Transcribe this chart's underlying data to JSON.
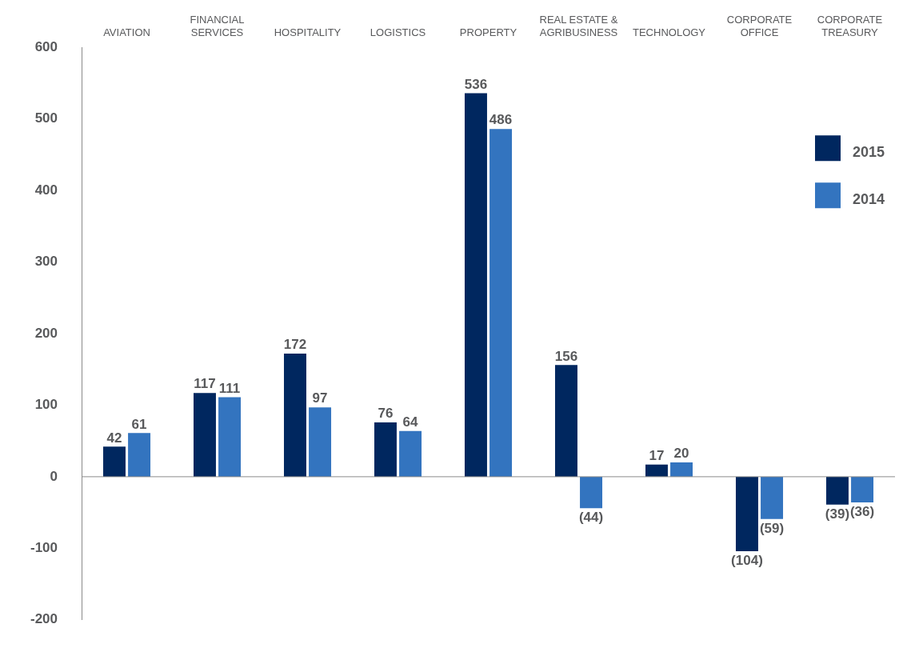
{
  "chart_data": {
    "type": "bar",
    "categories": [
      "AVIATION",
      "FINANCIAL SERVICES",
      "HOSPITALITY",
      "LOGISTICS",
      "PROPERTY",
      "REAL ESTATE & AGRIBUSINESS",
      "TECHNOLOGY",
      "CORPORATE OFFICE",
      "CORPORATE TREASURY"
    ],
    "series": [
      {
        "name": "2015",
        "color": "#00275f",
        "values": [
          42,
          117,
          172,
          76,
          536,
          156,
          17,
          -104,
          -39
        ],
        "value_labels": [
          "42",
          "117",
          "172",
          "76",
          "536",
          "156",
          "17",
          "(104)",
          "(39)"
        ]
      },
      {
        "name": "2014",
        "color": "#3374bf",
        "values": [
          61,
          111,
          97,
          64,
          486,
          -44,
          20,
          -59,
          -36
        ],
        "value_labels": [
          "61",
          "111",
          "97",
          "64",
          "486",
          "(44)",
          "20",
          "(59)",
          "(36)"
        ]
      }
    ],
    "ylim": [
      -200,
      600
    ],
    "yticks": [
      -200,
      -100,
      0,
      100,
      200,
      300,
      400,
      500,
      600
    ],
    "ref_lines": [
      {
        "axis": "y",
        "value": 0,
        "color": "#8a8a8a"
      }
    ],
    "grid": false,
    "legend": "right"
  }
}
